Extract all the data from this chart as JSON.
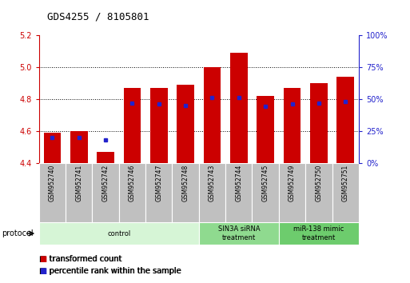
{
  "title": "GDS4255 / 8105801",
  "samples": [
    "GSM952740",
    "GSM952741",
    "GSM952742",
    "GSM952746",
    "GSM952747",
    "GSM952748",
    "GSM952743",
    "GSM952744",
    "GSM952745",
    "GSM952749",
    "GSM952750",
    "GSM952751"
  ],
  "transformed_counts": [
    4.59,
    4.6,
    4.47,
    4.87,
    4.87,
    4.89,
    5.0,
    5.09,
    4.82,
    4.87,
    4.9,
    4.94
  ],
  "percentile_ranks": [
    20,
    20,
    18,
    47,
    46,
    45,
    51,
    51,
    44,
    46,
    47,
    48
  ],
  "ylim_left": [
    4.4,
    5.2
  ],
  "ylim_right": [
    0,
    100
  ],
  "yticks_left": [
    4.4,
    4.6,
    4.8,
    5.0,
    5.2
  ],
  "yticks_right": [
    0,
    25,
    50,
    75,
    100
  ],
  "ytick_labels_right": [
    "0%",
    "25%",
    "50%",
    "75%",
    "100%"
  ],
  "bar_color": "#cc0000",
  "dot_color": "#2222cc",
  "bar_width": 0.65,
  "groups": [
    {
      "label": "control",
      "start": 0,
      "end": 6,
      "color": "#d6f5d6"
    },
    {
      "label": "SIN3A siRNA\ntreatment",
      "start": 6,
      "end": 9,
      "color": "#8fda8f"
    },
    {
      "label": "miR-138 mimic\ntreatment",
      "start": 9,
      "end": 12,
      "color": "#6dcc6d"
    }
  ],
  "protocol_label": "protocol",
  "legend_items": [
    {
      "label": "transformed count",
      "color": "#cc0000"
    },
    {
      "label": "percentile rank within the sample",
      "color": "#2222cc"
    }
  ],
  "axis_color_left": "#cc0000",
  "axis_color_right": "#2222cc",
  "sample_box_color": "#c0c0c0",
  "grid_yticks": [
    4.6,
    4.8,
    5.0
  ]
}
